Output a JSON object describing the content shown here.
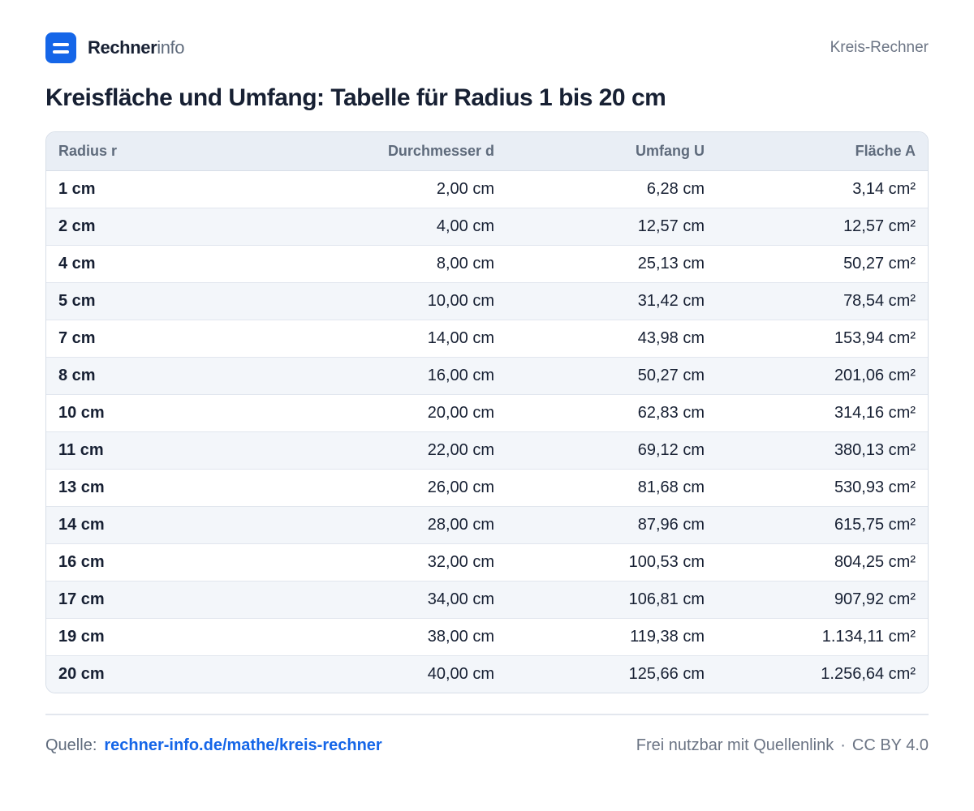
{
  "brand": {
    "name_bold": "Rechner",
    "name_light": "info"
  },
  "nav": {
    "label": "Kreis-Rechner"
  },
  "page": {
    "title": "Kreisfläche und Umfang: Tabelle für Radius 1 bis 20 cm"
  },
  "table": {
    "headers": [
      "Radius r",
      "Durchmesser d",
      "Umfang U",
      "Fläche A"
    ],
    "rows": [
      [
        "1 cm",
        "2,00 cm",
        "6,28 cm",
        "3,14 cm²"
      ],
      [
        "2 cm",
        "4,00 cm",
        "12,57 cm",
        "12,57 cm²"
      ],
      [
        "4 cm",
        "8,00 cm",
        "25,13 cm",
        "50,27 cm²"
      ],
      [
        "5 cm",
        "10,00 cm",
        "31,42 cm",
        "78,54 cm²"
      ],
      [
        "7 cm",
        "14,00 cm",
        "43,98 cm",
        "153,94 cm²"
      ],
      [
        "8 cm",
        "16,00 cm",
        "50,27 cm",
        "201,06 cm²"
      ],
      [
        "10 cm",
        "20,00 cm",
        "62,83 cm",
        "314,16 cm²"
      ],
      [
        "11 cm",
        "22,00 cm",
        "69,12 cm",
        "380,13 cm²"
      ],
      [
        "13 cm",
        "26,00 cm",
        "81,68 cm",
        "530,93 cm²"
      ],
      [
        "14 cm",
        "28,00 cm",
        "87,96 cm",
        "615,75 cm²"
      ],
      [
        "16 cm",
        "32,00 cm",
        "100,53 cm",
        "804,25 cm²"
      ],
      [
        "17 cm",
        "34,00 cm",
        "106,81 cm",
        "907,92 cm²"
      ],
      [
        "19 cm",
        "38,00 cm",
        "119,38 cm",
        "1.134,11 cm²"
      ],
      [
        "20 cm",
        "40,00 cm",
        "125,66 cm",
        "1.256,64 cm²"
      ]
    ]
  },
  "footer": {
    "source_label": "Quelle:",
    "source_link": "rechner-info.de/mathe/kreis-rechner",
    "license_note": "Frei nutzbar mit Quellenlink",
    "separator": "·",
    "license": "CC BY 4.0"
  },
  "colors": {
    "accent": "#1566e8",
    "text": "#172033",
    "muted": "#5f6b7c",
    "header_bg": "#e9eef5",
    "stripe_bg": "#f3f6fa"
  },
  "icons": {
    "logo": "rechnerinfo-logo-icon"
  }
}
